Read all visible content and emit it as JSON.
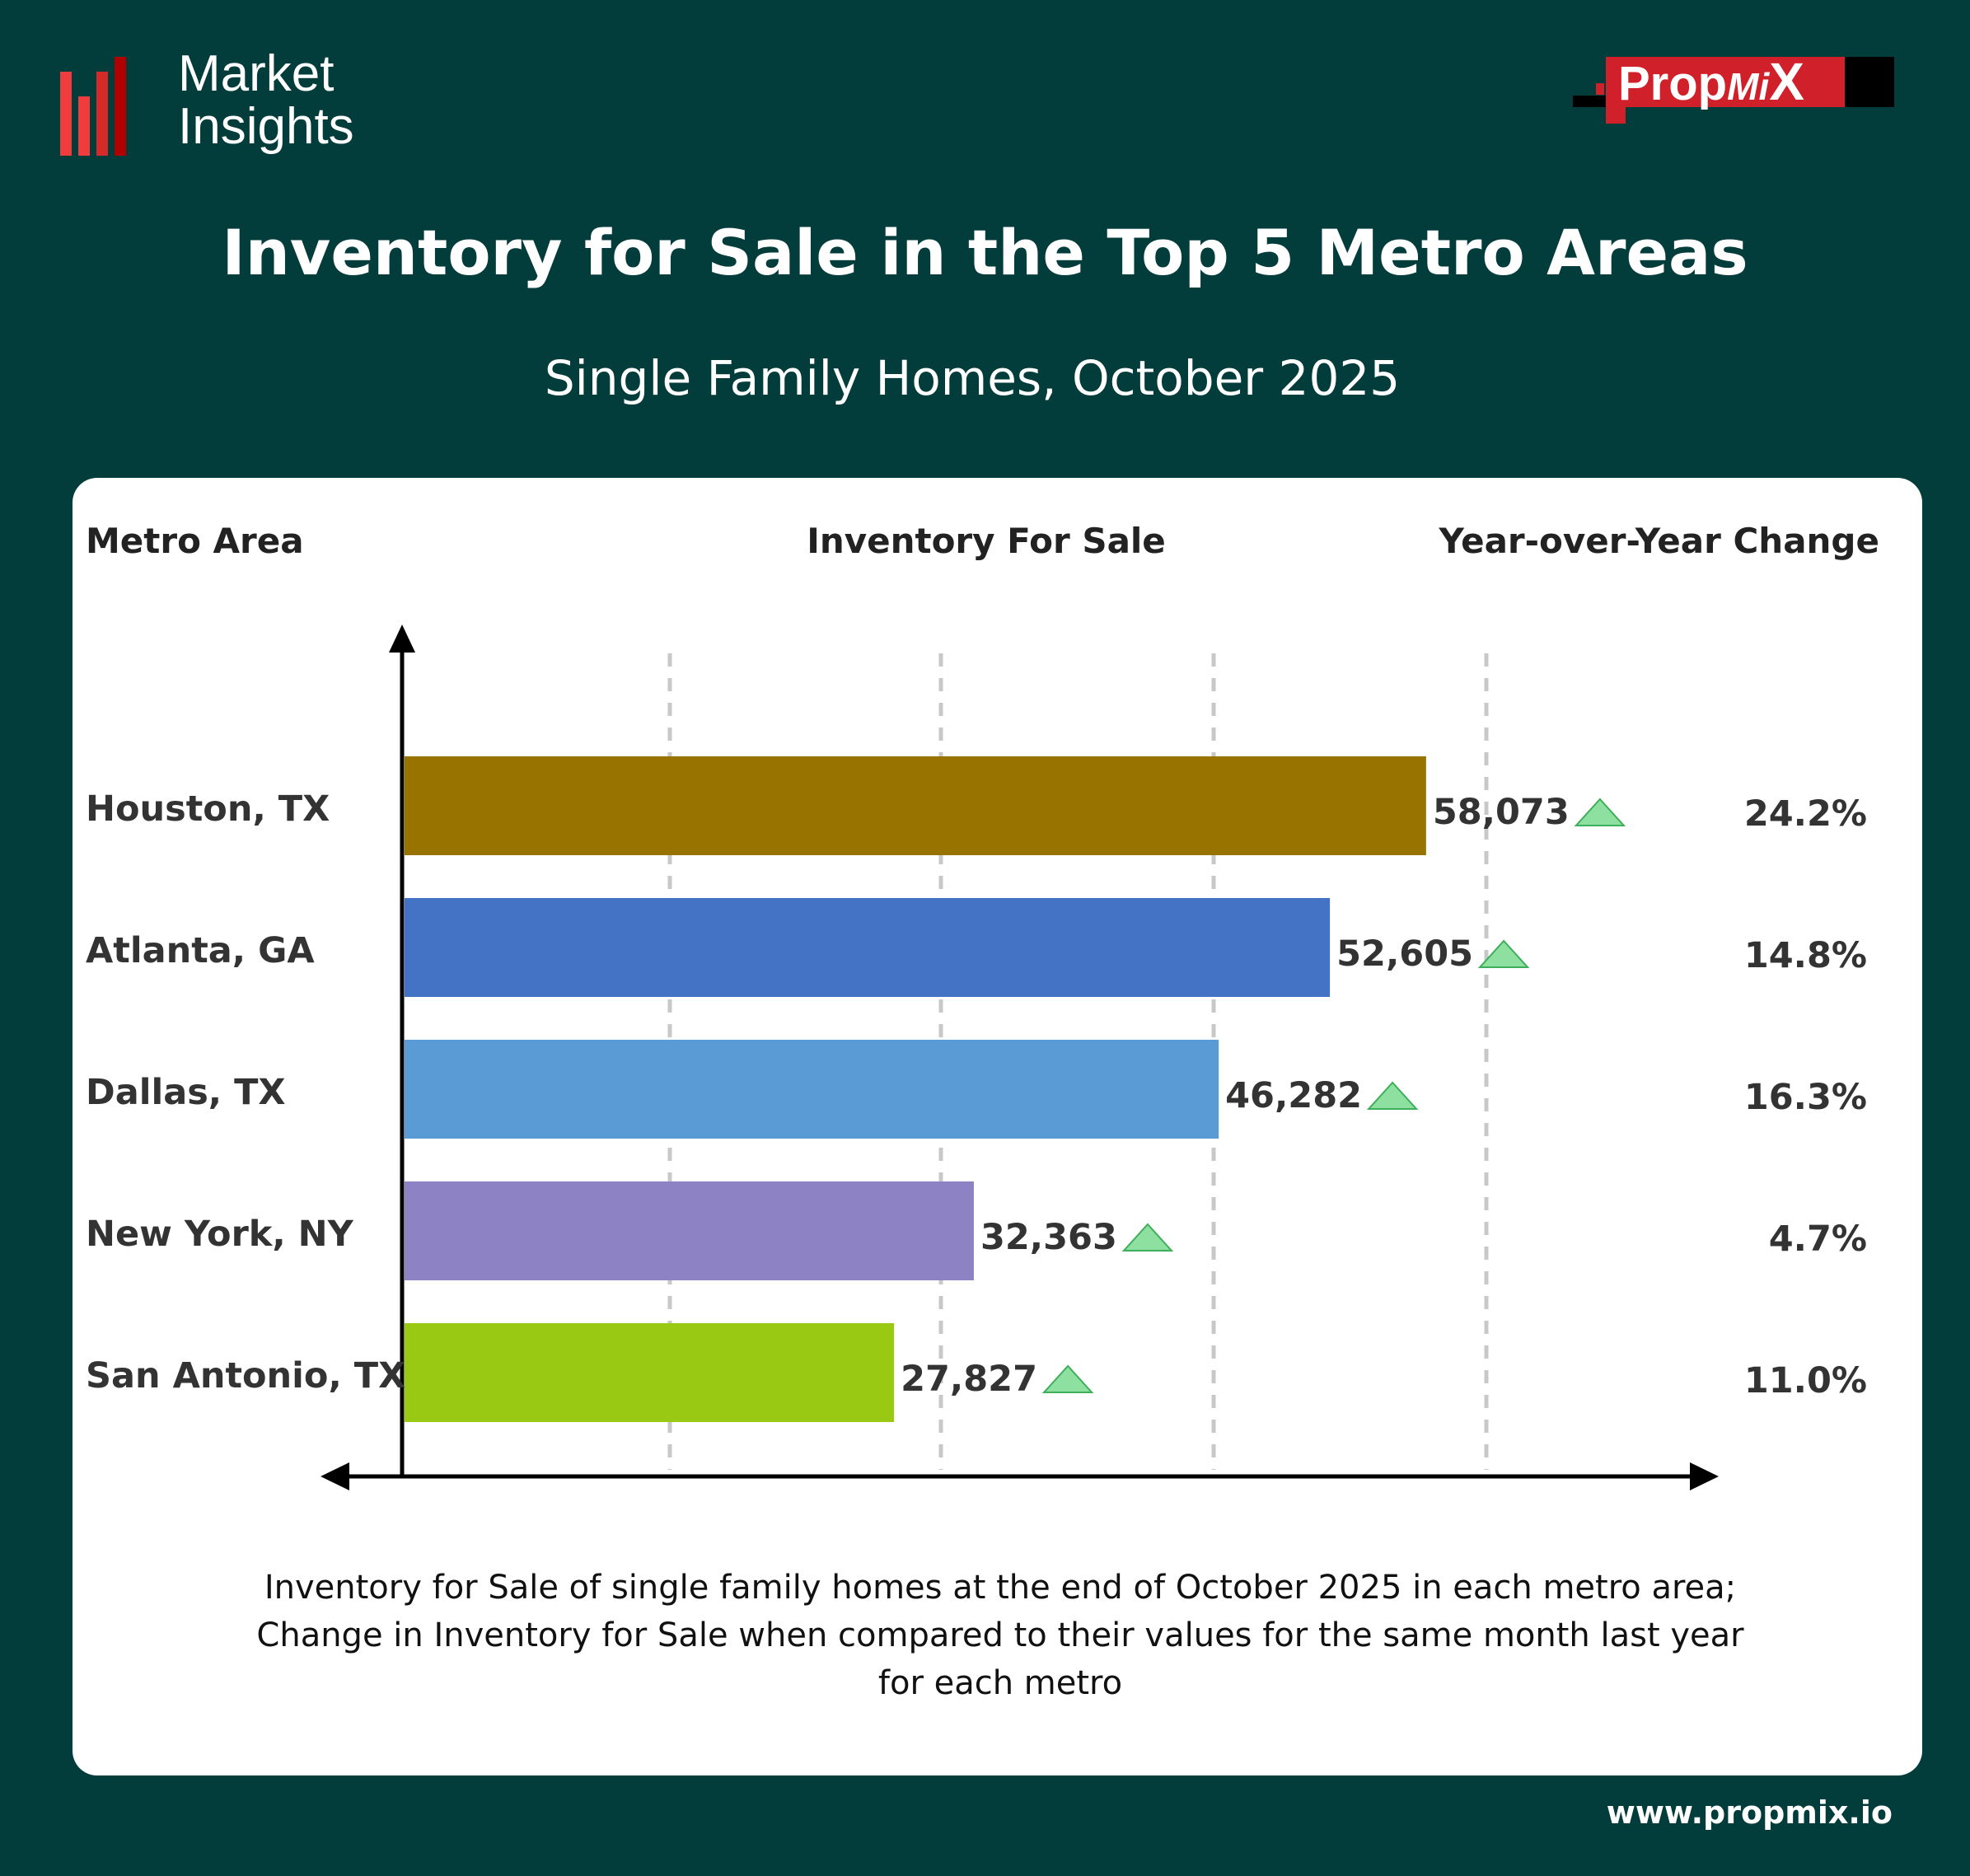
{
  "brand": {
    "logo_text_line1": "Market",
    "logo_text_line2": "Insights",
    "partner_logo": "PropMiX",
    "url": "www.propmix.io"
  },
  "header": {
    "title": "Inventory for Sale in the Top 5 Metro Areas",
    "subtitle": "Single Family Homes, October 2025"
  },
  "columns": {
    "metro": "Metro Area",
    "inventory": "Inventory For Sale",
    "yoy": "Year-over-Year Change"
  },
  "caption": [
    "Inventory for Sale of single family homes at the end of October 2025 in each metro area;",
    "Change in Inventory for Sale when compared to their values for the same month last year",
    "for each metro"
  ],
  "chart_data": {
    "type": "bar",
    "orientation": "horizontal",
    "title": "Inventory for Sale in the Top 5 Metro Areas",
    "subtitle": "Single Family Homes, October 2025",
    "categories": [
      "Houston, TX",
      "Atlanta, GA",
      "Dallas, TX",
      "New York, NY",
      "San Antonio, TX"
    ],
    "values": [
      58073,
      52605,
      46282,
      32363,
      27827
    ],
    "value_labels": [
      "58,073",
      "52,605",
      "46,282",
      "32,363",
      "27,827"
    ],
    "yoy_change": [
      "24.2%",
      "14.8%",
      "16.3%",
      "4.7%",
      "11.0%"
    ],
    "yoy_direction": [
      "up",
      "up",
      "up",
      "up",
      "up"
    ],
    "colors": [
      "#997300",
      "#4472c4",
      "#5b9bd5",
      "#8c82c4",
      "#99c913"
    ],
    "trend_up_color": "#8ee0a0",
    "xlim": [
      0,
      60000
    ],
    "grid": true
  }
}
